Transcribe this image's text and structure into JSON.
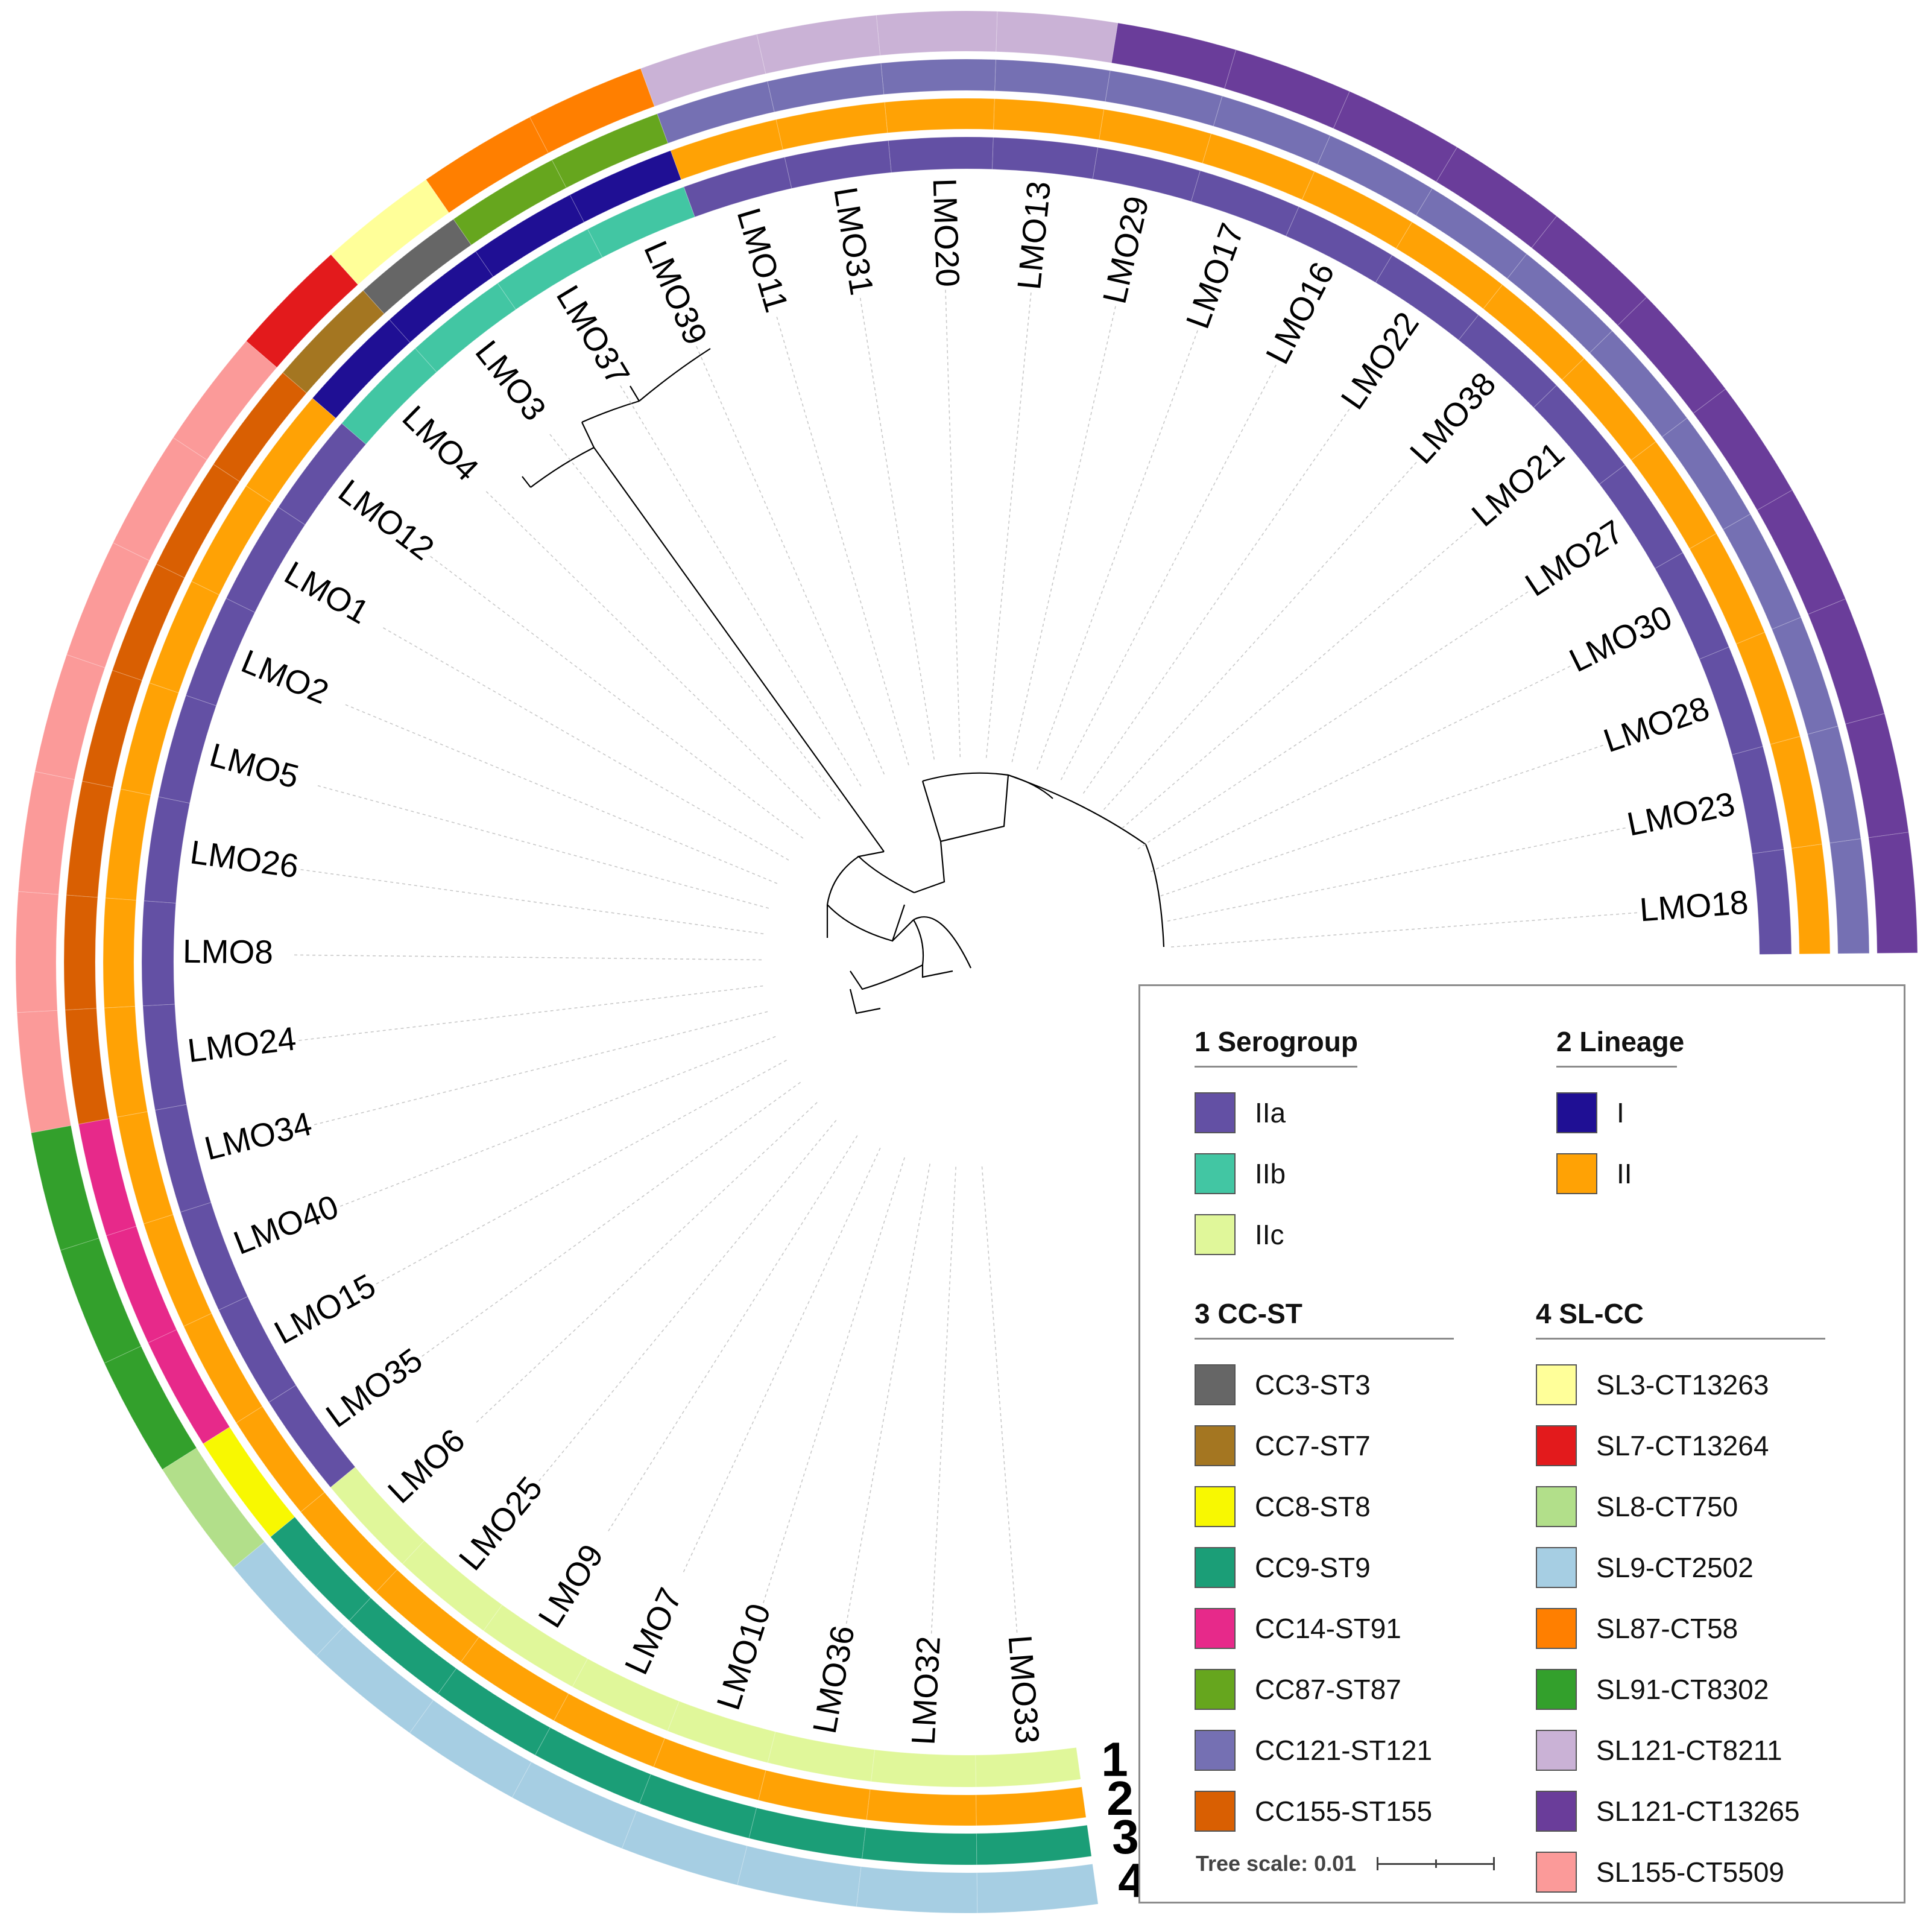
{
  "leaves": [
    {
      "name": "LMO18",
      "serogroup": "IIa",
      "lineage": "II",
      "cc_st": "CC121-ST121",
      "sl_cc": "SL121-CT13265"
    },
    {
      "name": "LMO23",
      "serogroup": "IIa",
      "lineage": "II",
      "cc_st": "CC121-ST121",
      "sl_cc": "SL121-CT13265"
    },
    {
      "name": "LMO28",
      "serogroup": "IIa",
      "lineage": "II",
      "cc_st": "CC121-ST121",
      "sl_cc": "SL121-CT13265"
    },
    {
      "name": "LMO30",
      "serogroup": "IIa",
      "lineage": "II",
      "cc_st": "CC121-ST121",
      "sl_cc": "SL121-CT13265"
    },
    {
      "name": "LMO27",
      "serogroup": "IIa",
      "lineage": "II",
      "cc_st": "CC121-ST121",
      "sl_cc": "SL121-CT13265"
    },
    {
      "name": "LMO21",
      "serogroup": "IIa",
      "lineage": "II",
      "cc_st": "CC121-ST121",
      "sl_cc": "SL121-CT13265"
    },
    {
      "name": "LMO38",
      "serogroup": "IIa",
      "lineage": "II",
      "cc_st": "CC121-ST121",
      "sl_cc": "SL121-CT13265"
    },
    {
      "name": "LMO22",
      "serogroup": "IIa",
      "lineage": "II",
      "cc_st": "CC121-ST121",
      "sl_cc": "SL121-CT13265"
    },
    {
      "name": "LMO16",
      "serogroup": "IIa",
      "lineage": "II",
      "cc_st": "CC121-ST121",
      "sl_cc": "SL121-CT13265"
    },
    {
      "name": "LMO17",
      "serogroup": "IIa",
      "lineage": "II",
      "cc_st": "CC121-ST121",
      "sl_cc": "SL121-CT13265"
    },
    {
      "name": "LMO29",
      "serogroup": "IIa",
      "lineage": "II",
      "cc_st": "CC121-ST121",
      "sl_cc": "SL121-CT13265"
    },
    {
      "name": "LMO13",
      "serogroup": "IIa",
      "lineage": "II",
      "cc_st": "CC121-ST121",
      "sl_cc": "SL121-CT8211"
    },
    {
      "name": "LMO20",
      "serogroup": "IIa",
      "lineage": "II",
      "cc_st": "CC121-ST121",
      "sl_cc": "SL121-CT8211"
    },
    {
      "name": "LMO31",
      "serogroup": "IIa",
      "lineage": "II",
      "cc_st": "CC121-ST121",
      "sl_cc": "SL121-CT8211"
    },
    {
      "name": "LMO11",
      "serogroup": "IIa",
      "lineage": "II",
      "cc_st": "CC121-ST121",
      "sl_cc": "SL121-CT8211"
    },
    {
      "name": "LMO39",
      "serogroup": "IIb",
      "lineage": "I",
      "cc_st": "CC87-ST87",
      "sl_cc": "SL87-CT58"
    },
    {
      "name": "LMO37",
      "serogroup": "IIb",
      "lineage": "I",
      "cc_st": "CC87-ST87",
      "sl_cc": "SL87-CT58"
    },
    {
      "name": "LMO3",
      "serogroup": "IIb",
      "lineage": "I",
      "cc_st": "CC3-ST3",
      "sl_cc": "SL3-CT13263"
    },
    {
      "name": "LMO4",
      "serogroup": "IIb",
      "lineage": "I",
      "cc_st": "CC7-ST7",
      "sl_cc": "SL7-CT13264"
    },
    {
      "name": "LMO12",
      "serogroup": "IIa",
      "lineage": "II",
      "cc_st": "CC155-ST155",
      "sl_cc": "SL155-CT5509"
    },
    {
      "name": "LMO1",
      "serogroup": "IIa",
      "lineage": "II",
      "cc_st": "CC155-ST155",
      "sl_cc": "SL155-CT5509"
    },
    {
      "name": "LMO2",
      "serogroup": "IIa",
      "lineage": "II",
      "cc_st": "CC155-ST155",
      "sl_cc": "SL155-CT5509"
    },
    {
      "name": "LMO5",
      "serogroup": "IIa",
      "lineage": "II",
      "cc_st": "CC155-ST155",
      "sl_cc": "SL155-CT5509"
    },
    {
      "name": "LMO26",
      "serogroup": "IIa",
      "lineage": "II",
      "cc_st": "CC155-ST155",
      "sl_cc": "SL155-CT5509"
    },
    {
      "name": "LMO8",
      "serogroup": "IIa",
      "lineage": "II",
      "cc_st": "CC155-ST155",
      "sl_cc": "SL155-CT5509"
    },
    {
      "name": "LMO24",
      "serogroup": "IIa",
      "lineage": "II",
      "cc_st": "CC155-ST155",
      "sl_cc": "SL155-CT5509"
    },
    {
      "name": "LMO34",
      "serogroup": "IIa",
      "lineage": "II",
      "cc_st": "CC14-ST91",
      "sl_cc": "SL91-CT8302"
    },
    {
      "name": "LMO40",
      "serogroup": "IIa",
      "lineage": "II",
      "cc_st": "CC14-ST91",
      "sl_cc": "SL91-CT8302"
    },
    {
      "name": "LMO15",
      "serogroup": "IIa",
      "lineage": "II",
      "cc_st": "CC14-ST91",
      "sl_cc": "SL91-CT8302"
    },
    {
      "name": "LMO35",
      "serogroup": "IIa",
      "lineage": "II",
      "cc_st": "CC8-ST8",
      "sl_cc": "SL8-CT750"
    },
    {
      "name": "LMO6",
      "serogroup": "IIc",
      "lineage": "II",
      "cc_st": "CC9-ST9",
      "sl_cc": "SL9-CT2502"
    },
    {
      "name": "LMO25",
      "serogroup": "IIc",
      "lineage": "II",
      "cc_st": "CC9-ST9",
      "sl_cc": "SL9-CT2502"
    },
    {
      "name": "LMO9",
      "serogroup": "IIc",
      "lineage": "II",
      "cc_st": "CC9-ST9",
      "sl_cc": "SL9-CT2502"
    },
    {
      "name": "LMO7",
      "serogroup": "IIc",
      "lineage": "II",
      "cc_st": "CC9-ST9",
      "sl_cc": "SL9-CT2502"
    },
    {
      "name": "LMO10",
      "serogroup": "IIc",
      "lineage": "II",
      "cc_st": "CC9-ST9",
      "sl_cc": "SL9-CT2502"
    },
    {
      "name": "LMO36",
      "serogroup": "IIc",
      "lineage": "II",
      "cc_st": "CC9-ST9",
      "sl_cc": "SL9-CT2502"
    },
    {
      "name": "LMO32",
      "serogroup": "IIc",
      "lineage": "II",
      "cc_st": "CC9-ST9",
      "sl_cc": "SL9-CT2502"
    },
    {
      "name": "LMO33",
      "serogroup": "IIc",
      "lineage": "II",
      "cc_st": "CC9-ST9",
      "sl_cc": "SL9-CT2502"
    }
  ],
  "ring_numbers": [
    "1",
    "2",
    "3",
    "4"
  ],
  "legend": {
    "serogroup": {
      "title": "1 Serogroup",
      "items": [
        {
          "label": "IIa",
          "color": "#6350a4"
        },
        {
          "label": "IIb",
          "color": "#42c6a3"
        },
        {
          "label": "IIc",
          "color": "#e0f79a"
        }
      ]
    },
    "lineage": {
      "title": "2 Lineage",
      "items": [
        {
          "label": "I",
          "color": "#1f0f94"
        },
        {
          "label": "II",
          "color": "#ffa205"
        }
      ]
    },
    "cc_st": {
      "title": "3 CC-ST",
      "items": [
        {
          "label": "CC3-ST3",
          "color": "#666666"
        },
        {
          "label": "CC7-ST7",
          "color": "#a47621"
        },
        {
          "label": "CC8-ST8",
          "color": "#f8f801"
        },
        {
          "label": "CC9-ST9",
          "color": "#1b9e77"
        },
        {
          "label": "CC14-ST91",
          "color": "#e7298a"
        },
        {
          "label": "CC87-ST87",
          "color": "#66a61e"
        },
        {
          "label": "CC121-ST121",
          "color": "#7570b3"
        },
        {
          "label": "CC155-ST155",
          "color": "#d95f02"
        }
      ]
    },
    "sl_cc": {
      "title": "4 SL-CC",
      "items": [
        {
          "label": "SL3-CT13263",
          "color": "#ffff99"
        },
        {
          "label": "SL7-CT13264",
          "color": "#e31a1c"
        },
        {
          "label": "SL8-CT750",
          "color": "#b2df8a"
        },
        {
          "label": "SL9-CT2502",
          "color": "#a6cee3"
        },
        {
          "label": "SL87-CT58",
          "color": "#ff7f00"
        },
        {
          "label": "SL91-CT8302",
          "color": "#33a02c"
        },
        {
          "label": "SL121-CT8211",
          "color": "#cab2d6"
        },
        {
          "label": "SL121-CT13265",
          "color": "#6a3d9a"
        },
        {
          "label": "SL155-CT5509",
          "color": "#fb9a99"
        }
      ]
    }
  },
  "tree_scale": "Tree scale: 0.01"
}
